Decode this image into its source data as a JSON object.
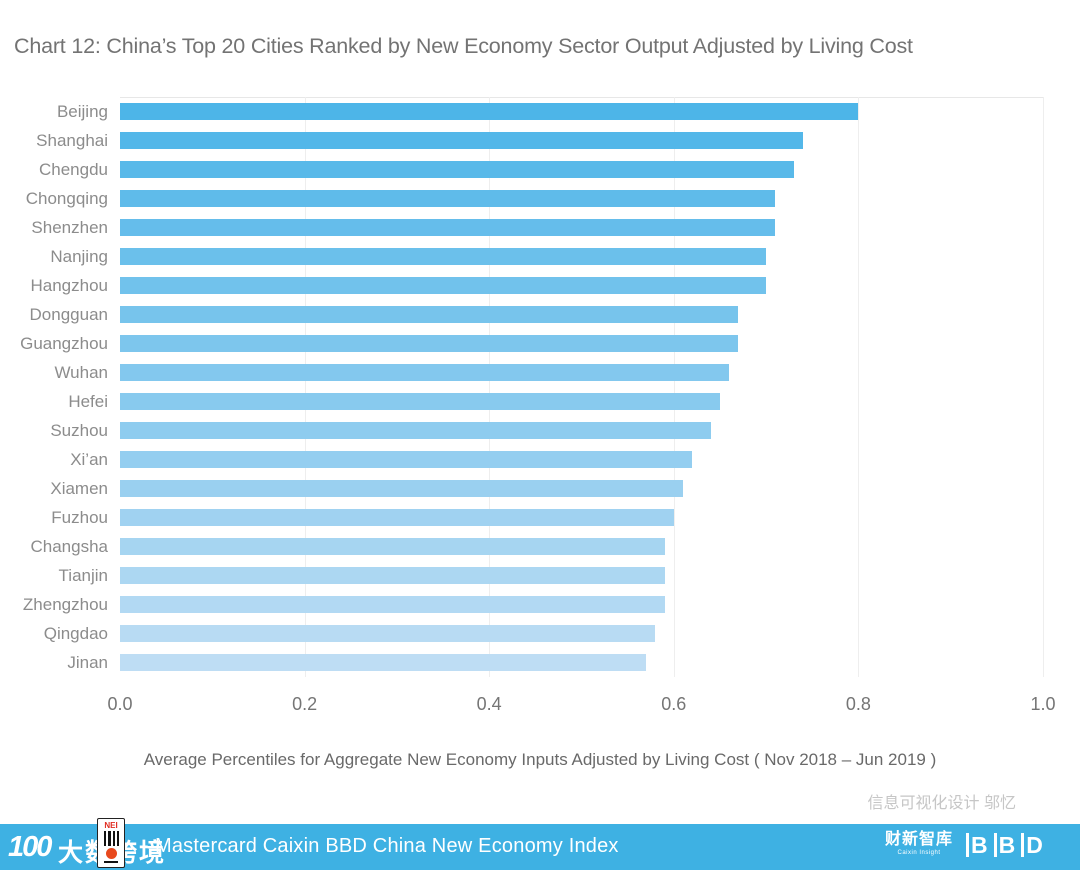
{
  "title": "Chart 12: China’s Top 20 Cities Ranked by New Economy Sector Output Adjusted by Living Cost",
  "chart_data": {
    "type": "bar",
    "orientation": "horizontal",
    "categories": [
      "Beijing",
      "Shanghai",
      "Chengdu",
      "Chongqing",
      "Shenzhen",
      "Nanjing",
      "Hangzhou",
      "Dongguan",
      "Guangzhou",
      "Wuhan",
      "Hefei",
      "Suzhou",
      "Xi’an",
      "Xiamen",
      "Fuzhou",
      "Changsha",
      "Tianjin",
      "Zhengzhou",
      "Qingdao",
      "Jinan"
    ],
    "values": [
      0.8,
      0.74,
      0.73,
      0.71,
      0.71,
      0.7,
      0.7,
      0.67,
      0.67,
      0.66,
      0.65,
      0.64,
      0.62,
      0.61,
      0.6,
      0.59,
      0.59,
      0.59,
      0.58,
      0.57
    ],
    "xlim": [
      0.0,
      1.0
    ],
    "x_ticks": [
      "0.0",
      "0.2",
      "0.4",
      "0.6",
      "0.8",
      "1.0"
    ],
    "xlabel": "Average Percentiles for Aggregate New Economy Inputs Adjusted by Living Cost ( Nov 2018 – Jun 2019 )",
    "grid": true,
    "legend": "none",
    "bar_color_top": "#4DB5E8",
    "bar_color_bottom": "#BEDDF4"
  },
  "credit": "信息可视化设计 邬忆",
  "footer": {
    "bar_color": "#3EB1E3",
    "watermark_glyph": "100",
    "watermark_text": "大数跨境",
    "nei_badge_label": "NEI",
    "index_title": "Mastercard Caixin BBD China New Economy Index",
    "caixin_logo": "财新智库",
    "caixin_sub": "Caixin Insight",
    "bbd_logo": "BBD"
  }
}
